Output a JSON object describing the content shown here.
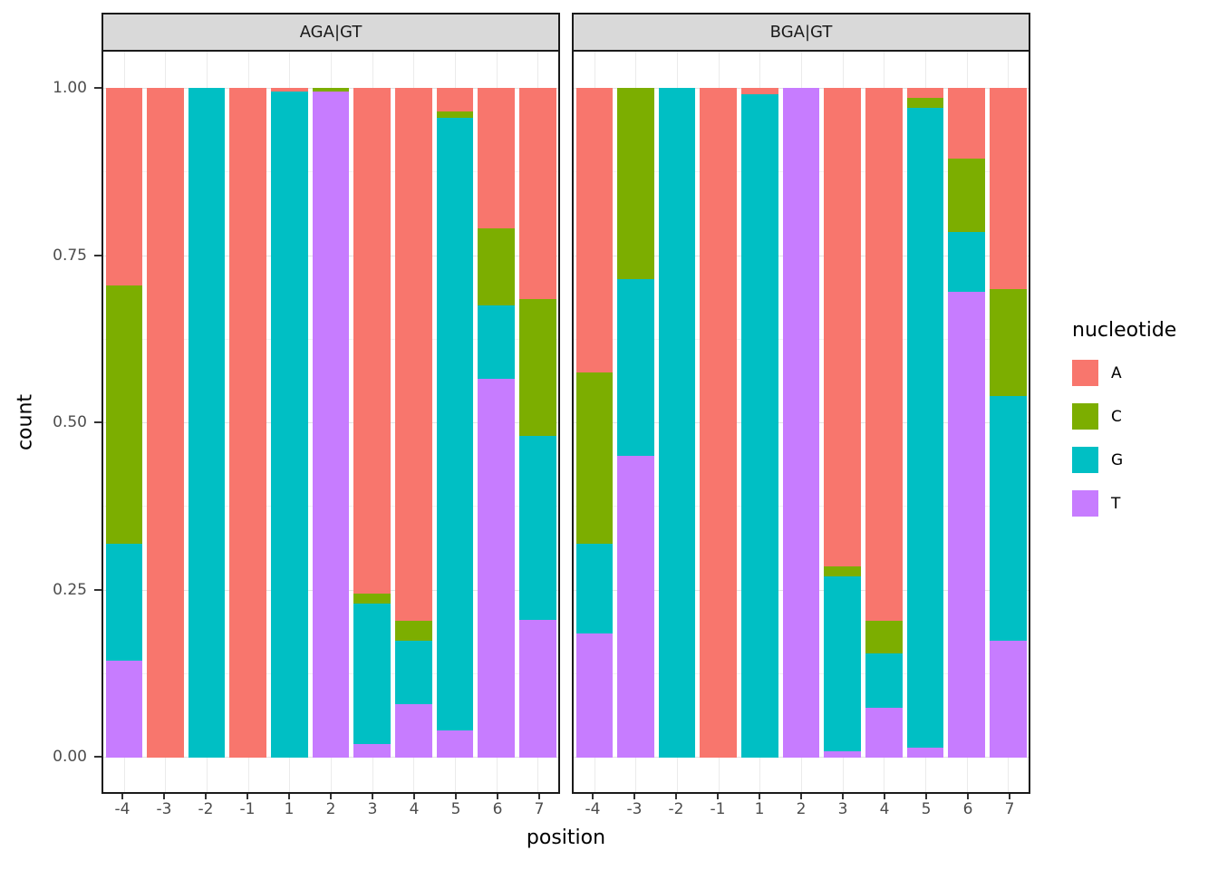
{
  "chart_data": {
    "type": "bar",
    "variant": "stacked-proportion-faceted",
    "title": "",
    "x_axis": {
      "label": "position",
      "categories": [
        "-4",
        "-3",
        "-2",
        "-1",
        "1",
        "2",
        "3",
        "4",
        "5",
        "6",
        "7"
      ]
    },
    "y_axis": {
      "label": "count",
      "range": [
        0,
        1
      ],
      "ticks": [
        {
          "label": "0.00",
          "value": 0.0
        },
        {
          "label": "0.25",
          "value": 0.25
        },
        {
          "label": "0.50",
          "value": 0.5
        },
        {
          "label": "0.75",
          "value": 0.75
        },
        {
          "label": "1.00",
          "value": 1.0
        }
      ],
      "minor_gridlines": [
        0.125,
        0.375,
        0.625,
        0.875
      ]
    },
    "legend": {
      "title": "nucleotide",
      "entries": [
        "A",
        "C",
        "G",
        "T"
      ],
      "position": "right"
    },
    "series_colors": {
      "A": "#F8766D",
      "C": "#7CAE00",
      "G": "#00BFC4",
      "T": "#C77CFF"
    },
    "stack_order_bottom_to_top": [
      "T",
      "G",
      "C",
      "A"
    ],
    "facets": [
      {
        "label": "AGA|GT",
        "values": {
          "A": [
            0.295,
            1.0,
            0.0,
            1.0,
            0.005,
            0.0,
            0.755,
            0.795,
            0.035,
            0.21,
            0.315
          ],
          "C": [
            0.385,
            0.0,
            0.0,
            0.0,
            0.0,
            0.005,
            0.015,
            0.03,
            0.01,
            0.115,
            0.205
          ],
          "G": [
            0.175,
            0.0,
            1.0,
            0.0,
            0.995,
            0.0,
            0.21,
            0.095,
            0.915,
            0.11,
            0.275
          ],
          "T": [
            0.145,
            0.0,
            0.0,
            0.0,
            0.0,
            0.995,
            0.02,
            0.08,
            0.04,
            0.565,
            0.205
          ]
        }
      },
      {
        "label": "BGA|GT",
        "values": {
          "A": [
            0.425,
            0.0,
            0.0,
            1.0,
            0.01,
            0.0,
            0.715,
            0.795,
            0.015,
            0.105,
            0.3
          ],
          "C": [
            0.255,
            0.285,
            0.0,
            0.0,
            0.0,
            0.0,
            0.015,
            0.05,
            0.015,
            0.11,
            0.16
          ],
          "G": [
            0.135,
            0.265,
            1.0,
            0.0,
            0.99,
            0.0,
            0.26,
            0.08,
            0.955,
            0.09,
            0.365
          ],
          "T": [
            0.185,
            0.45,
            0.0,
            0.0,
            0.0,
            1.0,
            0.01,
            0.075,
            0.015,
            0.695,
            0.175
          ]
        }
      }
    ],
    "theme": {
      "strip_fill": "#d9d9d9",
      "panel_border": "#1a1a1a",
      "gridline_major": "#e3e3e3",
      "gridline_minor": "#f2f2f2",
      "tick_text": "#4d4d4d"
    }
  }
}
